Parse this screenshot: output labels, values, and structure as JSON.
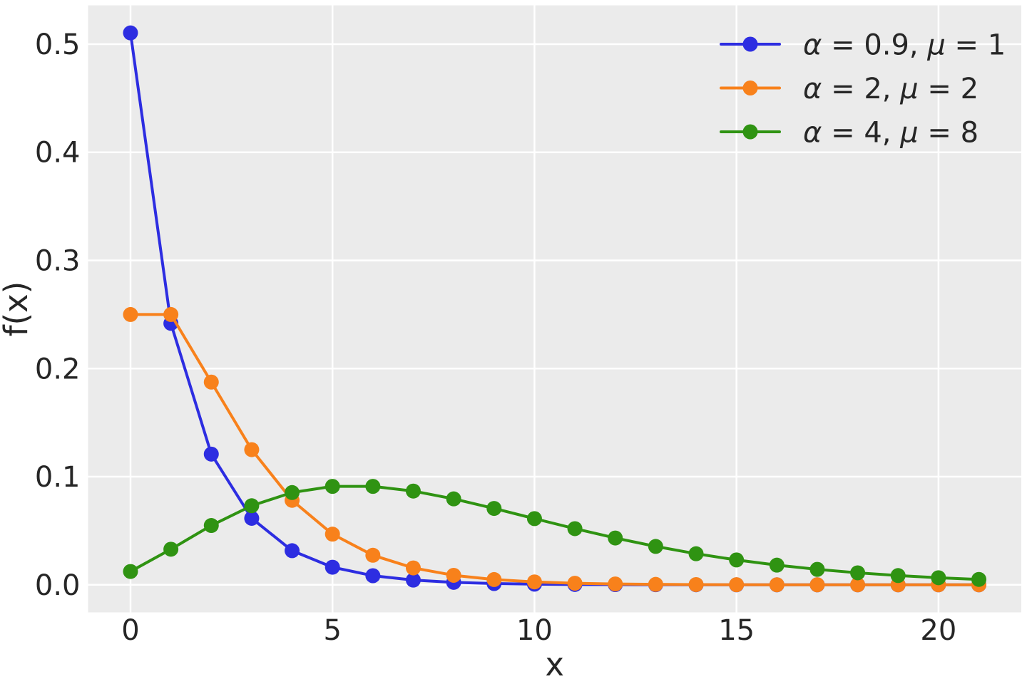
{
  "figure": {
    "background": "#ffffff",
    "plot_background": "#ebebeb",
    "grid_color": "#ffffff",
    "text_color": "#262626"
  },
  "chart_data": {
    "type": "line",
    "title": "",
    "xlabel": "x",
    "ylabel": "f(x)",
    "x": [
      0,
      1,
      2,
      3,
      4,
      5,
      6,
      7,
      8,
      9,
      10,
      11,
      12,
      13,
      14,
      15,
      16,
      17,
      18,
      19,
      20,
      21
    ],
    "series": [
      {
        "name": "α = 0.9, μ = 1",
        "color": "#2d2de1",
        "values": [
          0.510434,
          0.241784,
          0.120892,
          0.061507,
          0.031563,
          0.01628,
          0.008426,
          0.004371,
          0.002272,
          0.001182,
          0.000616,
          0.000321,
          0.000168,
          8.76e-05,
          4.58e-05,
          2.4e-05,
          1.26e-05,
          6.6e-06,
          3.4e-06,
          1.8e-06,
          9e-07,
          5e-07
        ]
      },
      {
        "name": "α = 2, μ = 2",
        "color": "#f8811b",
        "values": [
          0.25,
          0.25,
          0.1875,
          0.125,
          0.078125,
          0.046875,
          0.027344,
          0.015625,
          0.008789,
          0.004883,
          0.002686,
          0.001465,
          0.000793,
          0.000427,
          0.000229,
          0.000122,
          6.48e-05,
          3.43e-05,
          1.81e-05,
          9.5e-06,
          5e-06,
          2.6e-06
        ]
      },
      {
        "name": "α = 4, μ = 8",
        "color": "#2f9312",
        "values": [
          0.012346,
          0.032922,
          0.05487,
          0.07316,
          0.085353,
          0.091043,
          0.091043,
          0.086708,
          0.079482,
          0.070651,
          0.061231,
          0.051953,
          0.043294,
          0.035523,
          0.028757,
          0.023006,
          0.018213,
          0.014285,
          0.01111,
          0.008576,
          0.006575,
          0.00501
        ]
      }
    ],
    "xticks": {
      "labels": [
        "0",
        "5",
        "10",
        "15",
        "20"
      ],
      "values": [
        0,
        5,
        10,
        15,
        20
      ]
    },
    "yticks": {
      "labels": [
        "0.0",
        "0.1",
        "0.2",
        "0.3",
        "0.4",
        "0.5"
      ],
      "values": [
        0.0,
        0.1,
        0.2,
        0.3,
        0.4,
        0.5
      ]
    },
    "xlim": [
      -1.05,
      22.05
    ],
    "ylim": [
      -0.0255,
      0.5359
    ],
    "grid": true,
    "legend": {
      "position": "upper-right",
      "frame": false
    }
  }
}
